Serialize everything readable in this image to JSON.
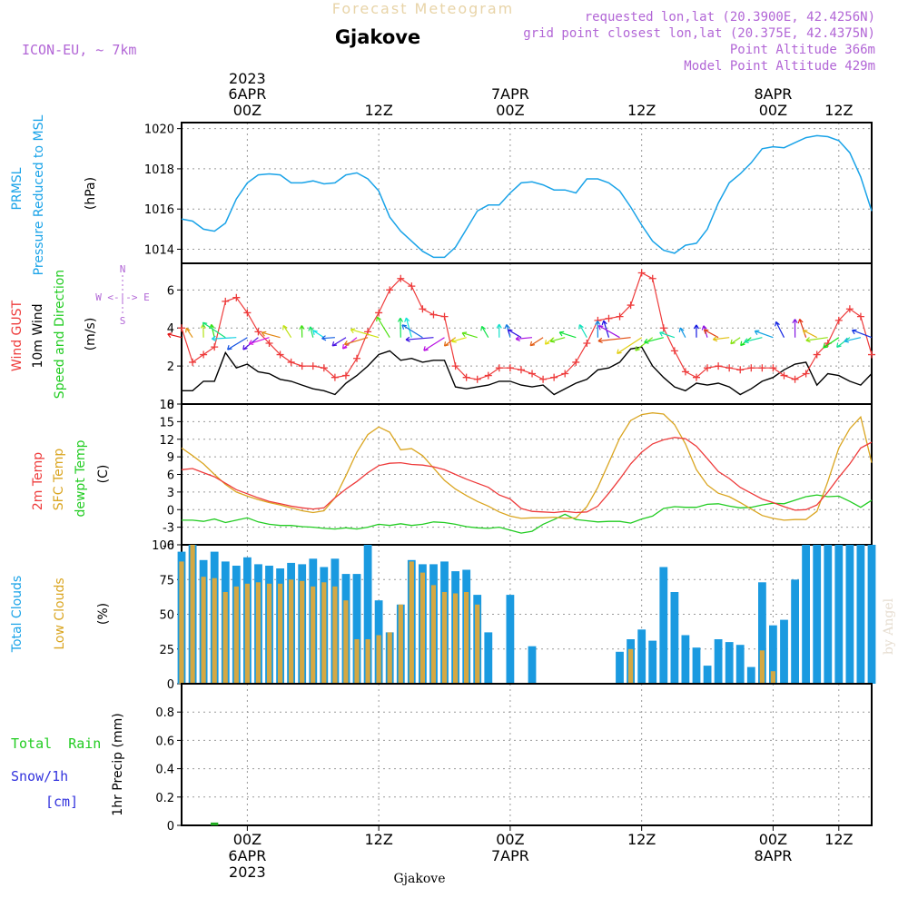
{
  "header": {
    "product_title": "Forecast Meteogram",
    "station": "Gjakove",
    "model": "ICON-EU, ~ 7km",
    "requested_point": "requested lon,lat (20.3900E, 42.4256N)",
    "grid_point": "grid point closest lon,lat (20.375E, 42.4375N)",
    "point_altitude": "Point Altitude 366m",
    "model_altitude": "Model Point Altitude 429m"
  },
  "footer": {
    "station": "Gjakove",
    "credit": "by Angel"
  },
  "time_axis": {
    "start_hour": -6,
    "end_hour": 57,
    "ticks": [
      {
        "hour": 0,
        "label": "00Z"
      },
      {
        "hour": 12,
        "label": "12Z"
      },
      {
        "hour": 24,
        "label": "00Z"
      },
      {
        "hour": 36,
        "label": "12Z"
      },
      {
        "hour": 48,
        "label": "00Z"
      },
      {
        "hour": 54,
        "label": "12Z"
      }
    ],
    "dates": [
      {
        "hour": 0,
        "label": "6APR",
        "year": "2023"
      },
      {
        "hour": 24,
        "label": "7APR",
        "year": ""
      },
      {
        "hour": 48,
        "label": "8APR",
        "year": ""
      }
    ]
  },
  "panel_labels": {
    "pressure": {
      "line1": "PRMSL",
      "line2": "Pressure Reduced to MSL",
      "unit": "(hPa)"
    },
    "wind": {
      "gust": "Wind GUST",
      "wind10": "10m Wind",
      "dir": "Speed and Direction",
      "unit": "(m/s)",
      "compass_ns": "N",
      "compass_s": "S",
      "compass_ew": "W <-|-> E"
    },
    "temp": {
      "t2m": "2m Temp",
      "sfc": "SFC Temp",
      "dew": "dewpt Temp",
      "unit": "(C)"
    },
    "clouds": {
      "total": "Total Clouds",
      "low": "Low Clouds",
      "unit": "(%)"
    },
    "precip": {
      "rain": "Total  Rain",
      "snow": "Snow/1h",
      "snow_unit": "[cm]",
      "axis": "1hr Precip (mm)"
    }
  },
  "colors": {
    "pressure": "#1aa3e8",
    "gust": "#ee3b3b",
    "wind10": "#000000",
    "t2m": "#ee3b3b",
    "sfc": "#daa520",
    "dew": "#22cc22",
    "total_clouds": "#1a9ae0",
    "low_clouds": "#d4a843",
    "rain": "#22aa22",
    "snow": "#3333dd",
    "label_purple": "#b266d6",
    "header_beige": "#e8d4a8",
    "green_text": "#22cc22"
  },
  "chart_data": [
    {
      "type": "line",
      "title": "PRMSL Pressure Reduced to MSL",
      "ylabel": "(hPa)",
      "ylim": [
        1013.3,
        1020.3
      ],
      "yticks": [
        1014,
        1016,
        1018,
        1020
      ],
      "x": [
        -6,
        -5,
        -4,
        -3,
        -2,
        -1,
        0,
        1,
        2,
        3,
        4,
        5,
        6,
        7,
        8,
        9,
        10,
        11,
        12,
        13,
        14,
        15,
        16,
        17,
        18,
        19,
        20,
        21,
        22,
        23,
        24,
        25,
        26,
        27,
        28,
        29,
        30,
        31,
        32,
        33,
        34,
        35,
        36,
        37,
        38,
        39,
        40,
        41,
        42,
        43,
        44,
        45,
        46,
        47,
        48,
        49,
        50,
        51,
        52,
        53,
        54,
        55,
        56,
        57
      ],
      "series": [
        {
          "name": "PRMSL",
          "values": [
            1015.5,
            1015.4,
            1015.0,
            1014.9,
            1015.3,
            1016.5,
            1017.3,
            1017.7,
            1017.75,
            1017.7,
            1017.3,
            1017.3,
            1017.4,
            1017.25,
            1017.3,
            1017.7,
            1017.8,
            1017.5,
            1016.9,
            1015.6,
            1014.9,
            1014.4,
            1013.9,
            1013.6,
            1013.6,
            1014.1,
            1015.0,
            1015.9,
            1016.2,
            1016.2,
            1016.8,
            1017.3,
            1017.35,
            1017.2,
            1016.95,
            1016.95,
            1016.8,
            1017.5,
            1017.5,
            1017.3,
            1016.9,
            1016.1,
            1015.2,
            1014.4,
            1013.95,
            1013.8,
            1014.2,
            1014.3,
            1015.0,
            1016.3,
            1017.3,
            1017.75,
            1018.3,
            1019.0,
            1019.1,
            1019.05,
            1019.3,
            1019.55,
            1019.65,
            1019.6,
            1019.4,
            1018.8,
            1017.6,
            1015.9
          ]
        }
      ]
    },
    {
      "type": "line",
      "title": "Wind GUST / 10m Wind Speed and Direction",
      "ylabel": "(m/s)",
      "ylim": [
        0,
        7.4
      ],
      "yticks": [
        0,
        2,
        4,
        6
      ],
      "x": [
        -6,
        -5,
        -4,
        -3,
        -2,
        -1,
        0,
        1,
        2,
        3,
        4,
        5,
        6,
        7,
        8,
        9,
        10,
        11,
        12,
        13,
        14,
        15,
        16,
        17,
        18,
        19,
        20,
        21,
        22,
        23,
        24,
        25,
        26,
        27,
        28,
        29,
        30,
        31,
        32,
        33,
        34,
        35,
        36,
        37,
        38,
        39,
        40,
        41,
        42,
        43,
        44,
        45,
        46,
        47,
        48,
        49,
        50,
        51,
        52,
        53,
        54,
        55,
        56,
        57
      ],
      "series": [
        {
          "name": "Wind GUST",
          "values": [
            4.0,
            2.2,
            2.6,
            3.0,
            5.4,
            5.6,
            4.8,
            3.8,
            3.2,
            2.6,
            2.2,
            2.0,
            2.0,
            1.9,
            1.4,
            1.5,
            2.4,
            3.8,
            4.8,
            6.0,
            6.6,
            6.2,
            5.0,
            4.7,
            4.6,
            2.0,
            1.4,
            1.3,
            1.5,
            1.9,
            1.9,
            1.8,
            1.6,
            1.3,
            1.4,
            1.6,
            2.2,
            3.2,
            4.4,
            4.5,
            4.6,
            5.2,
            6.9,
            6.6,
            4.0,
            2.8,
            1.7,
            1.4,
            1.9,
            2.0,
            1.9,
            1.8,
            1.9,
            1.9,
            1.9,
            1.5,
            1.3,
            1.6,
            2.6,
            3.2,
            4.4,
            5.0,
            4.6,
            2.6
          ]
        },
        {
          "name": "10m Wind",
          "values": [
            0.7,
            0.7,
            1.2,
            1.2,
            2.7,
            1.9,
            2.1,
            1.7,
            1.6,
            1.3,
            1.2,
            1.0,
            0.8,
            0.7,
            0.5,
            1.1,
            1.5,
            2.0,
            2.6,
            2.8,
            2.3,
            2.4,
            2.2,
            2.3,
            2.3,
            0.9,
            0.8,
            0.9,
            1.0,
            1.2,
            1.2,
            1.0,
            0.9,
            1.0,
            0.5,
            0.8,
            1.1,
            1.3,
            1.8,
            1.9,
            2.2,
            2.9,
            3.0,
            2.0,
            1.4,
            0.9,
            0.7,
            1.1,
            1.0,
            1.1,
            0.9,
            0.5,
            0.8,
            1.2,
            1.4,
            1.8,
            2.1,
            2.2,
            1.0,
            1.6,
            1.5,
            1.2,
            1.0,
            1.6
          ]
        }
      ],
      "direction_arrows": "arrows drawn at each hour along the 3.5 m/s level, rainbow-colored by hour, scaled by 10m wind speed"
    },
    {
      "type": "line",
      "title": "2m Temp / SFC Temp / dewpt Temp",
      "ylabel": "(C)",
      "ylim": [
        -6,
        18
      ],
      "yticks": [
        -6,
        -3,
        0,
        3,
        6,
        9,
        12,
        15,
        18
      ],
      "x": [
        -6,
        -5,
        -4,
        -3,
        -2,
        -1,
        0,
        1,
        2,
        3,
        4,
        5,
        6,
        7,
        8,
        9,
        10,
        11,
        12,
        13,
        14,
        15,
        16,
        17,
        18,
        19,
        20,
        21,
        22,
        23,
        24,
        25,
        26,
        27,
        28,
        29,
        30,
        31,
        32,
        33,
        34,
        35,
        36,
        37,
        38,
        39,
        40,
        41,
        42,
        43,
        44,
        45,
        46,
        47,
        48,
        49,
        50,
        51,
        52,
        53,
        54,
        55,
        56,
        57
      ],
      "series": [
        {
          "name": "2m Temp",
          "values": [
            6.8,
            7.0,
            6.3,
            5.6,
            4.5,
            3.4,
            2.7,
            2.0,
            1.4,
            1.0,
            0.6,
            0.3,
            0.1,
            0.3,
            2.0,
            3.5,
            4.8,
            6.3,
            7.5,
            7.9,
            8.0,
            7.7,
            7.6,
            7.3,
            6.8,
            6.0,
            5.2,
            4.5,
            3.8,
            2.5,
            1.8,
            0.2,
            -0.3,
            -0.4,
            -0.5,
            -0.3,
            -0.5,
            -0.4,
            0.6,
            2.8,
            5.2,
            7.8,
            9.8,
            11.2,
            11.9,
            12.3,
            12.1,
            10.8,
            8.7,
            6.5,
            5.3,
            3.8,
            2.8,
            1.8,
            1.2,
            0.5,
            -0.1,
            0.0,
            0.8,
            3.0,
            5.5,
            7.8,
            10.5,
            11.5
          ]
        },
        {
          "name": "SFC Temp",
          "values": [
            10.5,
            9.2,
            7.8,
            6.0,
            4.3,
            3.0,
            2.3,
            1.7,
            1.2,
            0.8,
            0.3,
            -0.2,
            -0.5,
            -0.2,
            2.0,
            5.8,
            9.8,
            12.8,
            14.1,
            13.2,
            10.2,
            10.4,
            9.2,
            7.1,
            5.0,
            3.5,
            2.4,
            1.4,
            0.6,
            -0.4,
            -1.1,
            -1.5,
            -1.4,
            -1.4,
            -1.3,
            -1.5,
            -1.4,
            0.5,
            3.8,
            8.0,
            12.2,
            15.2,
            16.2,
            16.5,
            16.3,
            14.5,
            11.2,
            6.8,
            4.2,
            2.8,
            2.2,
            1.2,
            0.1,
            -1.0,
            -1.5,
            -1.8,
            -1.7,
            -1.7,
            -0.3,
            4.8,
            10.5,
            13.8,
            15.8,
            8.0
          ]
        },
        {
          "name": "dewpt Temp",
          "values": [
            -1.8,
            -1.8,
            -2.0,
            -1.6,
            -2.2,
            -1.8,
            -1.4,
            -2.1,
            -2.5,
            -2.7,
            -2.7,
            -2.9,
            -3.0,
            -3.2,
            -3.3,
            -3.1,
            -3.3,
            -3.0,
            -2.5,
            -2.7,
            -2.4,
            -2.7,
            -2.5,
            -2.1,
            -2.2,
            -2.5,
            -2.9,
            -3.1,
            -3.2,
            -3.0,
            -3.5,
            -4.0,
            -3.7,
            -2.5,
            -1.7,
            -0.8,
            -1.7,
            -1.9,
            -2.1,
            -2.0,
            -2.0,
            -2.3,
            -1.6,
            -1.1,
            0.2,
            0.5,
            0.4,
            0.4,
            0.9,
            1.0,
            0.6,
            0.3,
            0.4,
            0.8,
            1.1,
            1.0,
            1.6,
            2.2,
            2.5,
            2.2,
            2.3,
            1.4,
            0.4,
            1.6
          ]
        }
      ]
    },
    {
      "type": "bar",
      "title": "Total Clouds / Low Clouds",
      "ylabel": "(%)",
      "ylim": [
        0,
        100
      ],
      "yticks": [
        0,
        25,
        50,
        75,
        100
      ],
      "x": [
        -6,
        -5,
        -4,
        -3,
        -2,
        -1,
        0,
        1,
        2,
        3,
        4,
        5,
        6,
        7,
        8,
        9,
        10,
        11,
        12,
        13,
        14,
        15,
        16,
        17,
        18,
        19,
        20,
        21,
        22,
        23,
        24,
        25,
        26,
        27,
        28,
        29,
        30,
        31,
        32,
        33,
        34,
        35,
        36,
        37,
        38,
        39,
        40,
        41,
        42,
        43,
        44,
        45,
        46,
        47,
        48,
        49,
        50,
        51,
        52,
        53,
        54,
        55,
        56,
        57
      ],
      "series": [
        {
          "name": "Total Clouds",
          "values": [
            95,
            100,
            89,
            95,
            88,
            85,
            91,
            86,
            85,
            83,
            87,
            86,
            90,
            84,
            90,
            79,
            79,
            100,
            60,
            37,
            57,
            89,
            86,
            86,
            88,
            81,
            82,
            64,
            37,
            6,
            64,
            0,
            27,
            0,
            0,
            0,
            0,
            0,
            0,
            0,
            23,
            32,
            39,
            31,
            84,
            66,
            35,
            26,
            13,
            32,
            30,
            28,
            12,
            73,
            42,
            46,
            75,
            100,
            100,
            100,
            100,
            100,
            100,
            100
          ]
        },
        {
          "name": "Low Clouds",
          "values": [
            88,
            100,
            77,
            76,
            66,
            70,
            72,
            73,
            72,
            72,
            75,
            74,
            70,
            73,
            70,
            60,
            32,
            32,
            35,
            37,
            57,
            88,
            80,
            71,
            66,
            65,
            66,
            57,
            0,
            0,
            0,
            0,
            0,
            0,
            0,
            0,
            0,
            0,
            0,
            0,
            0,
            25,
            0,
            0,
            0,
            0,
            0,
            0,
            0,
            0,
            0,
            0,
            0,
            24,
            9,
            0,
            0,
            0,
            0,
            0,
            0,
            0,
            0,
            0
          ]
        }
      ]
    },
    {
      "type": "bar",
      "title": "1hr Precip",
      "ylabel": "1hr Precip (mm)",
      "ylim": [
        0,
        1.0
      ],
      "yticks": [
        0,
        0.2,
        0.4,
        0.6,
        0.8
      ],
      "x": [
        -3
      ],
      "series": [
        {
          "name": "Total Rain",
          "values": [
            0.02
          ]
        },
        {
          "name": "Snow/1h",
          "values": [
            0
          ]
        }
      ]
    }
  ]
}
